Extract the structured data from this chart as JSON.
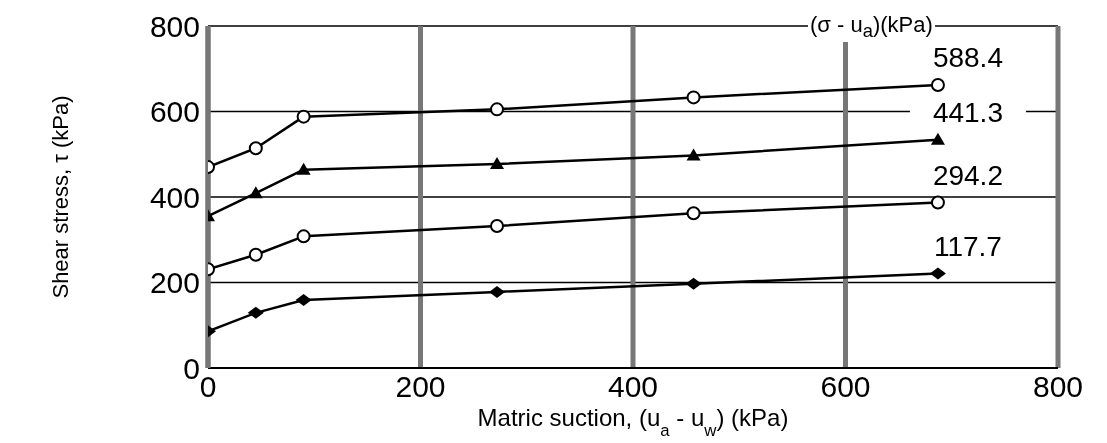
{
  "chart_data": {
    "type": "line",
    "xlabel": "Matric suction, (u$_{a}$ - u$_{w}$) (kPa)",
    "ylabel": "Shear stress, τ (kPa)",
    "legend_title": "(σ - u$_{a}$)(kPa)",
    "x": [
      0,
      45,
      90,
      272,
      457,
      687
    ],
    "series": [
      {
        "name": "588.4",
        "color": "#000000",
        "marker": "circle",
        "values": [
          470,
          514,
          588,
          605,
          633,
          662
        ]
      },
      {
        "name": "441.3",
        "color": "#000000",
        "marker": "triangle",
        "values": [
          355,
          409,
          464,
          477,
          497,
          534
        ]
      },
      {
        "name": "294.2",
        "color": "#000000",
        "marker": "circle",
        "values": [
          231,
          265,
          308,
          332,
          362,
          387
        ]
      },
      {
        "name": "117.7",
        "color": "#000000",
        "marker": "diamond",
        "values": [
          86,
          129,
          159,
          178,
          197,
          221
        ]
      }
    ],
    "xlim": [
      0,
      800
    ],
    "xticks": [
      0,
      200,
      400,
      600,
      800
    ],
    "ylim": [
      0,
      800
    ],
    "yticks": [
      0,
      200,
      400,
      600,
      800
    ],
    "grid": true,
    "line_style": "solid"
  }
}
